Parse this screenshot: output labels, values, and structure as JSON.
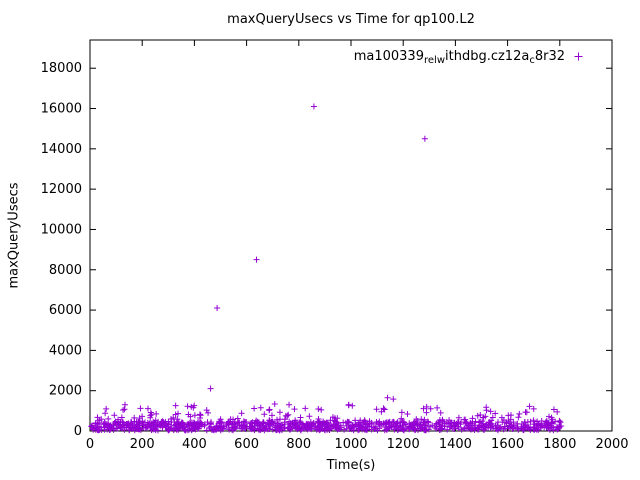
{
  "title": "maxQueryUsecs vs Time for qp100.L2",
  "legend": {
    "label": "ma100339_rel_withdbg.cz12a_c8r32",
    "label_parts": [
      {
        "text": "ma100339",
        "sub": false
      },
      {
        "text": "rel",
        "sub": true
      },
      {
        "text": "w",
        "sub": true
      },
      {
        "text": "ithdbg.cz12a",
        "sub": false
      },
      {
        "text": "c",
        "sub": true
      },
      {
        "text": "8r32",
        "sub": false
      }
    ],
    "marker": "plus-icon"
  },
  "chart_data": {
    "type": "scatter",
    "title": "maxQueryUsecs vs Time for qp100.L2",
    "xlabel": "Time(s)",
    "ylabel": "maxQueryUsecs",
    "xlim": [
      0,
      2000
    ],
    "ylim": [
      0,
      19400
    ],
    "xticks": [
      0,
      200,
      400,
      600,
      800,
      1000,
      1200,
      1400,
      1600,
      1800,
      2000
    ],
    "yticks": [
      0,
      2000,
      4000,
      6000,
      8000,
      10000,
      12000,
      14000,
      16000,
      18000
    ],
    "grid": false,
    "legend_position": "top-right-inside",
    "marker": "plus",
    "marker_color": "#9400d3",
    "series_name": "ma100339_rel_withdbg.cz12a_c8r32",
    "outliers": [
      [
        462,
        2100
      ],
      [
        487,
        6100
      ],
      [
        638,
        8500
      ],
      [
        858,
        16100
      ],
      [
        1283,
        14500
      ],
      [
        1140,
        1650
      ],
      [
        1162,
        1580
      ],
      [
        388,
        1200
      ],
      [
        62,
        1100
      ],
      [
        1005,
        1250
      ],
      [
        1330,
        1150
      ],
      [
        1518,
        1180
      ],
      [
        1700,
        1100
      ],
      [
        1790,
        950
      ]
    ],
    "dense_band": {
      "x_min": 4,
      "x_max": 1806,
      "count": 1050,
      "low_fraction": 0.82,
      "low_y_min": 30,
      "low_y_max": 460,
      "high_y_min": 440,
      "high_y_max": 1350,
      "seed": 1337
    }
  }
}
